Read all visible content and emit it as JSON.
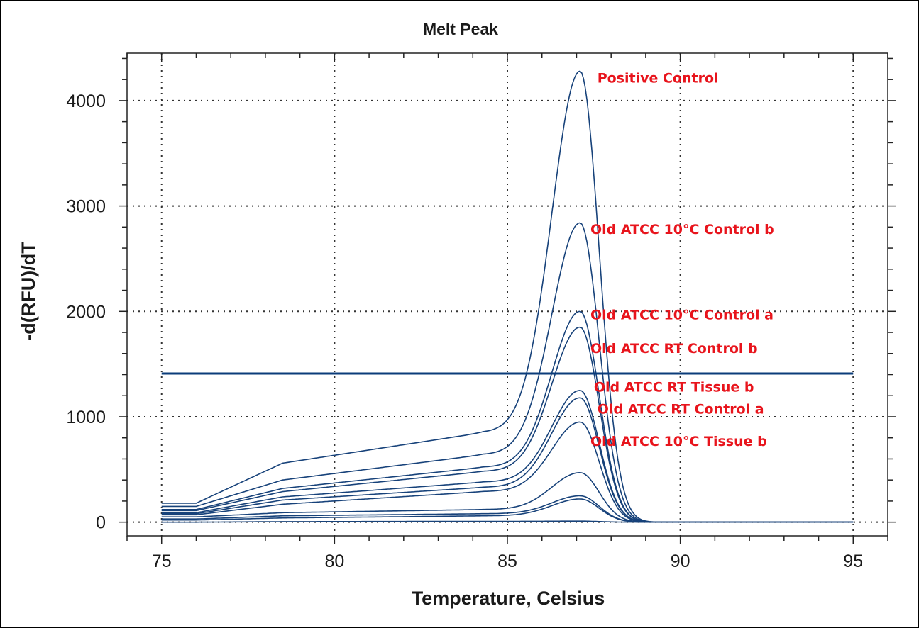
{
  "chart_data": {
    "type": "line",
    "title": "Melt Peak",
    "xlabel": "Temperature, Celsius",
    "ylabel": "-d(RFU)/dT",
    "xlim": [
      74.0,
      96.0
    ],
    "ylim": [
      -130,
      4450
    ],
    "xticks": [
      75,
      80,
      85,
      90,
      95
    ],
    "yticks": [
      0,
      1000,
      2000,
      3000,
      4000
    ],
    "grid": true,
    "threshold": 1410,
    "colors": {
      "series": "#17427a",
      "threshold": "#0b3c7a",
      "annotation": "#e8141c"
    },
    "series": [
      {
        "peak": 4280,
        "base": 180,
        "mid": 560,
        "pre": 850
      },
      {
        "peak": 2840,
        "base": 150,
        "mid": 400,
        "pre": 640
      },
      {
        "peak": 2000,
        "base": 120,
        "mid": 320,
        "pre": 520
      },
      {
        "peak": 1850,
        "base": 110,
        "mid": 290,
        "pre": 480
      },
      {
        "peak": 1250,
        "base": 90,
        "mid": 240,
        "pre": 380
      },
      {
        "peak": 1180,
        "base": 80,
        "mid": 210,
        "pre": 330
      },
      {
        "peak": 950,
        "base": 70,
        "mid": 170,
        "pre": 290
      },
      {
        "peak": 470,
        "base": 50,
        "mid": 90,
        "pre": 120
      },
      {
        "peak": 250,
        "base": 30,
        "mid": 60,
        "pre": 80
      },
      {
        "peak": 220,
        "base": 20,
        "mid": 40,
        "pre": 60
      },
      {
        "peak": 10,
        "base": 0,
        "mid": 5,
        "pre": 8
      }
    ],
    "annotations": [
      {
        "text": "Positive Control",
        "x": 87.6,
        "y": 4170
      },
      {
        "text": "Old ATCC 10°C Control b",
        "x": 87.4,
        "y": 2735
      },
      {
        "text": "Old ATCC 10°C Control a",
        "x": 87.4,
        "y": 1925
      },
      {
        "text": "Old ATCC RT Control b",
        "x": 87.4,
        "y": 1605
      },
      {
        "text": "Old ATCC RT Tissue b",
        "x": 87.5,
        "y": 1240
      },
      {
        "text": "Old ATCC RT Control a",
        "x": 87.6,
        "y": 1030
      },
      {
        "text": "Old ATCC 10°C Tissue b",
        "x": 87.4,
        "y": 725
      }
    ]
  }
}
